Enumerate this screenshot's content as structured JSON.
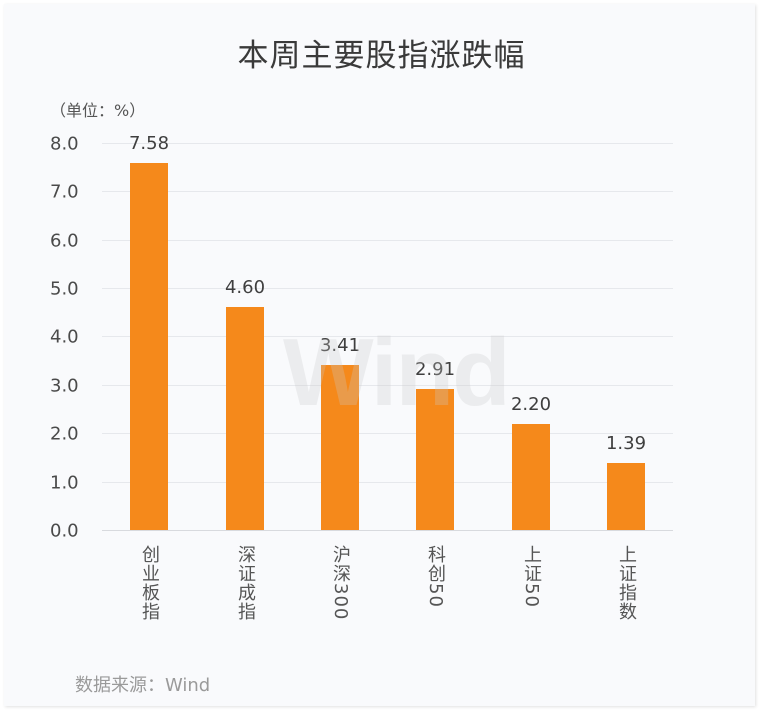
{
  "title": "本周主要股指涨跌幅",
  "unit_label": "（单位：%）",
  "watermark": "Wind",
  "source": "数据来源：Wind",
  "colors": {
    "bar": "#f5891b",
    "grid": "#e6e8ec",
    "background": "#f9fafc"
  },
  "y_ticks": [
    "0.0",
    "1.0",
    "2.0",
    "3.0",
    "4.0",
    "5.0",
    "6.0",
    "7.0",
    "8.0"
  ],
  "bars": [
    {
      "category": "创业板指",
      "value": 7.58,
      "label": "7.58"
    },
    {
      "category": "深证成指",
      "value": 4.6,
      "label": "4.60"
    },
    {
      "category": "沪深300",
      "value": 3.41,
      "label": "3.41"
    },
    {
      "category": "科创50",
      "value": 2.91,
      "label": "2.91"
    },
    {
      "category": "上证50",
      "value": 2.2,
      "label": "2.20"
    },
    {
      "category": "上证指数",
      "value": 1.39,
      "label": "1.39"
    }
  ],
  "chart_data": {
    "type": "bar",
    "title": "本周主要股指涨跌幅",
    "xlabel": "",
    "ylabel": "（单位：%）",
    "categories": [
      "创业板指",
      "深证成指",
      "沪深300",
      "科创50",
      "上证50",
      "上证指数"
    ],
    "values": [
      7.58,
      4.6,
      3.41,
      2.91,
      2.2,
      1.39
    ],
    "ylim": [
      0,
      8
    ],
    "y_ticks": [
      0,
      1,
      2,
      3,
      4,
      5,
      6,
      7,
      8
    ],
    "grid": true,
    "legend": "none",
    "data_labels": true,
    "source": "数据来源：Wind"
  }
}
